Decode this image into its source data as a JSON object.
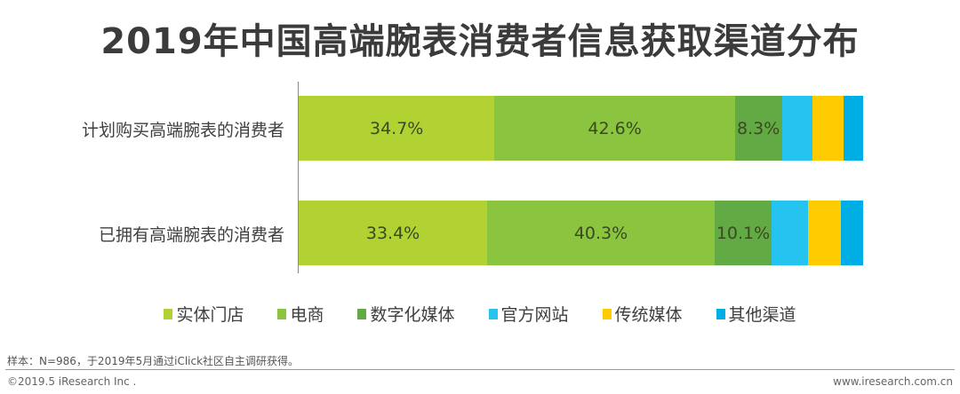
{
  "chart_data": {
    "type": "bar",
    "orientation": "horizontal",
    "stacked": true,
    "percent_stacked": true,
    "title": "2019年中国高端腕表消费者信息获取渠道分布",
    "categories": [
      "计划购买高端腕表的消费者",
      "已拥有高端腕表的消费者"
    ],
    "series": [
      {
        "name": "实体门店",
        "color": "#b2d234",
        "values": [
          34.7,
          33.4
        ],
        "labels_shown": true
      },
      {
        "name": "电商",
        "color": "#8bc53f",
        "values": [
          42.6,
          40.3
        ],
        "labels_shown": true
      },
      {
        "name": "数字化媒体",
        "color": "#62ab44",
        "values": [
          8.3,
          10.1
        ],
        "labels_shown": true
      },
      {
        "name": "官方网站",
        "color": "#25c4f0",
        "values": [
          5.5,
          6.5
        ],
        "labels_shown": false
      },
      {
        "name": "传统媒体",
        "color": "#fecb00",
        "values": [
          5.4,
          5.8
        ],
        "labels_shown": false
      },
      {
        "name": "其他渠道",
        "color": "#00aee6",
        "values": [
          3.5,
          3.9
        ],
        "labels_shown": false
      }
    ],
    "xlabel": "",
    "ylabel": "",
    "xlim": [
      0,
      100
    ],
    "grid": false,
    "legend_position": "bottom"
  },
  "title": "2019年中国高端腕表消费者信息获取渠道分布",
  "rows": [
    {
      "label": "计划购买高端腕表的消费者",
      "segments": [
        {
          "name": "实体门店",
          "value": 34.7,
          "text": "34.7%",
          "color": "#b2d234"
        },
        {
          "name": "电商",
          "value": 42.6,
          "text": "42.6%",
          "color": "#8bc53f"
        },
        {
          "name": "数字化媒体",
          "value": 8.3,
          "text": "8.3%",
          "color": "#62ab44"
        },
        {
          "name": "官方网站",
          "value": 5.5,
          "text": "",
          "color": "#25c4f0"
        },
        {
          "name": "传统媒体",
          "value": 5.4,
          "text": "",
          "color": "#fecb00"
        },
        {
          "name": "其他渠道",
          "value": 3.5,
          "text": "",
          "color": "#00aee6"
        }
      ]
    },
    {
      "label": "已拥有高端腕表的消费者",
      "segments": [
        {
          "name": "实体门店",
          "value": 33.4,
          "text": "33.4%",
          "color": "#b2d234"
        },
        {
          "name": "电商",
          "value": 40.3,
          "text": "40.3%",
          "color": "#8bc53f"
        },
        {
          "name": "数字化媒体",
          "value": 10.1,
          "text": "10.1%",
          "color": "#62ab44"
        },
        {
          "name": "官方网站",
          "value": 6.5,
          "text": "",
          "color": "#25c4f0"
        },
        {
          "name": "传统媒体",
          "value": 5.8,
          "text": "",
          "color": "#fecb00"
        },
        {
          "name": "其他渠道",
          "value": 3.9,
          "text": "",
          "color": "#00aee6"
        }
      ]
    }
  ],
  "legend": [
    {
      "label": "实体门店",
      "color": "#b2d234"
    },
    {
      "label": "电商",
      "color": "#8bc53f"
    },
    {
      "label": "数字化媒体",
      "color": "#62ab44"
    },
    {
      "label": "官方网站",
      "color": "#25c4f0"
    },
    {
      "label": "传统媒体",
      "color": "#fecb00"
    },
    {
      "label": "其他渠道",
      "color": "#00aee6"
    }
  ],
  "footer": {
    "note": "样本：N=986，于2019年5月通过iClick社区自主调研获得。",
    "copyright": "©2019.5 iResearch Inc .",
    "website": "www.iresearch.com.cn"
  }
}
